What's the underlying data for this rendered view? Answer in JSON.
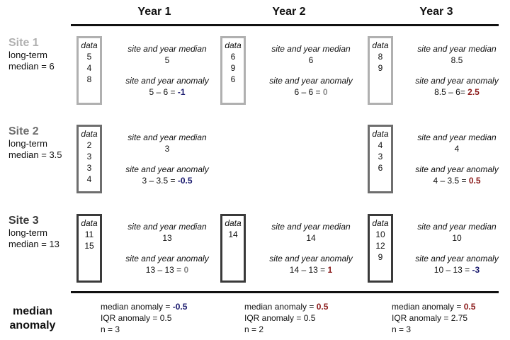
{
  "years": [
    "Year 1",
    "Year 2",
    "Year 3"
  ],
  "labels": {
    "data": "data",
    "site_year_median": "site and year median",
    "site_year_anomaly": "site and year anomaly",
    "median_anomaly_title_1": "median",
    "median_anomaly_title_2": "anomaly"
  },
  "sites": [
    {
      "name": "Site 1",
      "longterm_line1": "long-term",
      "longterm_line2": "median = 6",
      "cells": [
        {
          "data": [
            "5",
            "4",
            "8"
          ],
          "median": "5",
          "anomaly_expr": "5 – 6 = ",
          "anomaly_value": "-1",
          "sign": "neg"
        },
        {
          "data": [
            "6",
            "9",
            "6"
          ],
          "median": "6",
          "anomaly_expr": "6 – 6 = ",
          "anomaly_value": "0",
          "sign": "zero"
        },
        {
          "data": [
            "8",
            "9"
          ],
          "median": "8.5",
          "anomaly_expr": "8.5 – 6= ",
          "anomaly_value": "2.5",
          "sign": "pos"
        }
      ]
    },
    {
      "name": "Site 2",
      "longterm_line1": "long-term",
      "longterm_line2": "median = 3.5",
      "cells": [
        {
          "data": [
            "2",
            "3",
            "3",
            "4"
          ],
          "median": "3",
          "anomaly_expr": "3 – 3.5 = ",
          "anomaly_value": "-0.5",
          "sign": "neg"
        },
        null,
        {
          "data": [
            "4",
            "3",
            "6"
          ],
          "median": "4",
          "anomaly_expr": "4 – 3.5 = ",
          "anomaly_value": "0.5",
          "sign": "pos"
        }
      ]
    },
    {
      "name": "Site 3",
      "longterm_line1": "long-term",
      "longterm_line2": "median = 13",
      "cells": [
        {
          "data": [
            "11",
            "15"
          ],
          "median": "13",
          "anomaly_expr": "13 – 13 = ",
          "anomaly_value": "0",
          "sign": "zero"
        },
        {
          "data": [
            "14"
          ],
          "median": "14",
          "anomaly_expr": "14 – 13 = ",
          "anomaly_value": "1",
          "sign": "pos"
        },
        {
          "data": [
            "10",
            "12",
            "9"
          ],
          "median": "10",
          "anomaly_expr": "10 – 13 = ",
          "anomaly_value": "-3",
          "sign": "neg"
        }
      ]
    }
  ],
  "summary": [
    {
      "median_label": "median anomaly = ",
      "median_value": "-0.5",
      "sign": "neg",
      "iqr": "IQR anomaly = 0.5",
      "n": "n = 3"
    },
    {
      "median_label": "median anomaly = ",
      "median_value": "0.5",
      "sign": "pos",
      "iqr": "IQR anomaly = 0.5",
      "n": "n = 2"
    },
    {
      "median_label": "median anomaly = ",
      "median_value": "0.5",
      "sign": "pos",
      "iqr": "IQR anomaly = 2.75",
      "n": "n = 3"
    }
  ],
  "colors": {
    "site1": "#b0b0b0",
    "site2": "#6e6e6e",
    "site3": "#3a3a3a",
    "negative": "#1a1a6e",
    "positive": "#8b1a1a",
    "zero": "#8a8a8a"
  }
}
